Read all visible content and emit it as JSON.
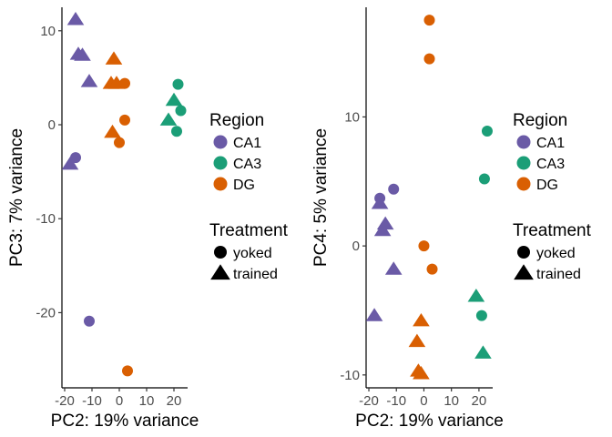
{
  "chart_data": [
    {
      "type": "scatter",
      "xlabel": "PC2: 19% variance",
      "ylabel": "PC3: 7% variance",
      "xlim": [
        -21,
        25
      ],
      "ylim": [
        -28,
        12.5
      ],
      "xticks": [
        "-20",
        "-10",
        "0",
        "10",
        "20"
      ],
      "xtick_values": [
        -20,
        -10,
        0,
        10,
        20
      ],
      "yticks": [
        "10",
        "0",
        "-10",
        "-20"
      ],
      "ytick_values": [
        10,
        0,
        -10,
        -20
      ],
      "grid": false,
      "points": [
        {
          "x": -16,
          "y": 11.2,
          "region": "CA1",
          "treatment": "trained"
        },
        {
          "x": -15,
          "y": 7.5,
          "region": "CA1",
          "treatment": "trained"
        },
        {
          "x": -13.5,
          "y": 7.4,
          "region": "CA1",
          "treatment": "trained"
        },
        {
          "x": -11,
          "y": 4.6,
          "region": "CA1",
          "treatment": "trained"
        },
        {
          "x": -16,
          "y": -3.5,
          "region": "CA1",
          "treatment": "yoked"
        },
        {
          "x": -18,
          "y": -4.2,
          "region": "CA1",
          "treatment": "trained"
        },
        {
          "x": -11,
          "y": -20.9,
          "region": "CA1",
          "treatment": "yoked"
        },
        {
          "x": -2,
          "y": 7.0,
          "region": "DG",
          "treatment": "trained"
        },
        {
          "x": -3,
          "y": 4.4,
          "region": "DG",
          "treatment": "trained"
        },
        {
          "x": -1,
          "y": 4.4,
          "region": "DG",
          "treatment": "trained"
        },
        {
          "x": 2,
          "y": 4.4,
          "region": "DG",
          "treatment": "yoked"
        },
        {
          "x": -2.5,
          "y": -0.8,
          "region": "DG",
          "treatment": "trained"
        },
        {
          "x": 2,
          "y": 0.5,
          "region": "DG",
          "treatment": "yoked"
        },
        {
          "x": 0,
          "y": -1.9,
          "region": "DG",
          "treatment": "yoked"
        },
        {
          "x": 3,
          "y": -26.2,
          "region": "DG",
          "treatment": "yoked"
        },
        {
          "x": 21.5,
          "y": 4.3,
          "region": "CA3",
          "treatment": "yoked"
        },
        {
          "x": 20,
          "y": 2.6,
          "region": "CA3",
          "treatment": "trained"
        },
        {
          "x": 22.5,
          "y": 1.5,
          "region": "CA3",
          "treatment": "yoked"
        },
        {
          "x": 18,
          "y": 0.5,
          "region": "CA3",
          "treatment": "trained"
        },
        {
          "x": 21,
          "y": -0.7,
          "region": "CA3",
          "treatment": "yoked"
        }
      ]
    },
    {
      "type": "scatter",
      "xlabel": "PC2: 19% variance",
      "ylabel": "PC4: 5% variance",
      "xlim": [
        -21,
        25
      ],
      "ylim": [
        -11,
        18.5
      ],
      "xticks": [
        "-20",
        "-10",
        "0",
        "10",
        "20"
      ],
      "xtick_values": [
        -20,
        -10,
        0,
        10,
        20
      ],
      "yticks": [
        "10",
        "0",
        "-10"
      ],
      "ytick_values": [
        10,
        0,
        -10
      ],
      "grid": false,
      "points": [
        {
          "x": 2,
          "y": 17.5,
          "region": "DG",
          "treatment": "yoked"
        },
        {
          "x": 2,
          "y": 14.5,
          "region": "DG",
          "treatment": "yoked"
        },
        {
          "x": 23,
          "y": 8.9,
          "region": "CA3",
          "treatment": "yoked"
        },
        {
          "x": 22,
          "y": 5.2,
          "region": "CA3",
          "treatment": "yoked"
        },
        {
          "x": -16,
          "y": 3.7,
          "region": "CA1",
          "treatment": "yoked"
        },
        {
          "x": -11,
          "y": 4.4,
          "region": "CA1",
          "treatment": "yoked"
        },
        {
          "x": -16,
          "y": 3.3,
          "region": "CA1",
          "treatment": "trained"
        },
        {
          "x": -14,
          "y": 1.7,
          "region": "CA1",
          "treatment": "trained"
        },
        {
          "x": -15,
          "y": 1.2,
          "region": "CA1",
          "treatment": "trained"
        },
        {
          "x": -11,
          "y": -1.8,
          "region": "CA1",
          "treatment": "trained"
        },
        {
          "x": -18,
          "y": -5.4,
          "region": "CA1",
          "treatment": "trained"
        },
        {
          "x": 0,
          "y": 0.0,
          "region": "DG",
          "treatment": "yoked"
        },
        {
          "x": 3,
          "y": -1.8,
          "region": "DG",
          "treatment": "yoked"
        },
        {
          "x": -1,
          "y": -5.8,
          "region": "DG",
          "treatment": "trained"
        },
        {
          "x": -2.5,
          "y": -7.4,
          "region": "DG",
          "treatment": "trained"
        },
        {
          "x": -2,
          "y": -9.7,
          "region": "DG",
          "treatment": "trained"
        },
        {
          "x": -1,
          "y": -9.9,
          "region": "DG",
          "treatment": "trained"
        },
        {
          "x": 19,
          "y": -3.9,
          "region": "CA3",
          "treatment": "trained"
        },
        {
          "x": 21,
          "y": -5.4,
          "region": "CA3",
          "treatment": "yoked"
        },
        {
          "x": 21.5,
          "y": -8.3,
          "region": "CA3",
          "treatment": "trained"
        }
      ]
    }
  ],
  "legend": {
    "region_title": "Region",
    "treatment_title": "Treatment",
    "regions": [
      {
        "label": "CA1",
        "color": "#6a5aa6"
      },
      {
        "label": "CA3",
        "color": "#1b9e77"
      },
      {
        "label": "DG",
        "color": "#d95f02"
      }
    ],
    "treatments": [
      {
        "label": "yoked",
        "shape": "circle"
      },
      {
        "label": "trained",
        "shape": "triangle"
      }
    ]
  }
}
